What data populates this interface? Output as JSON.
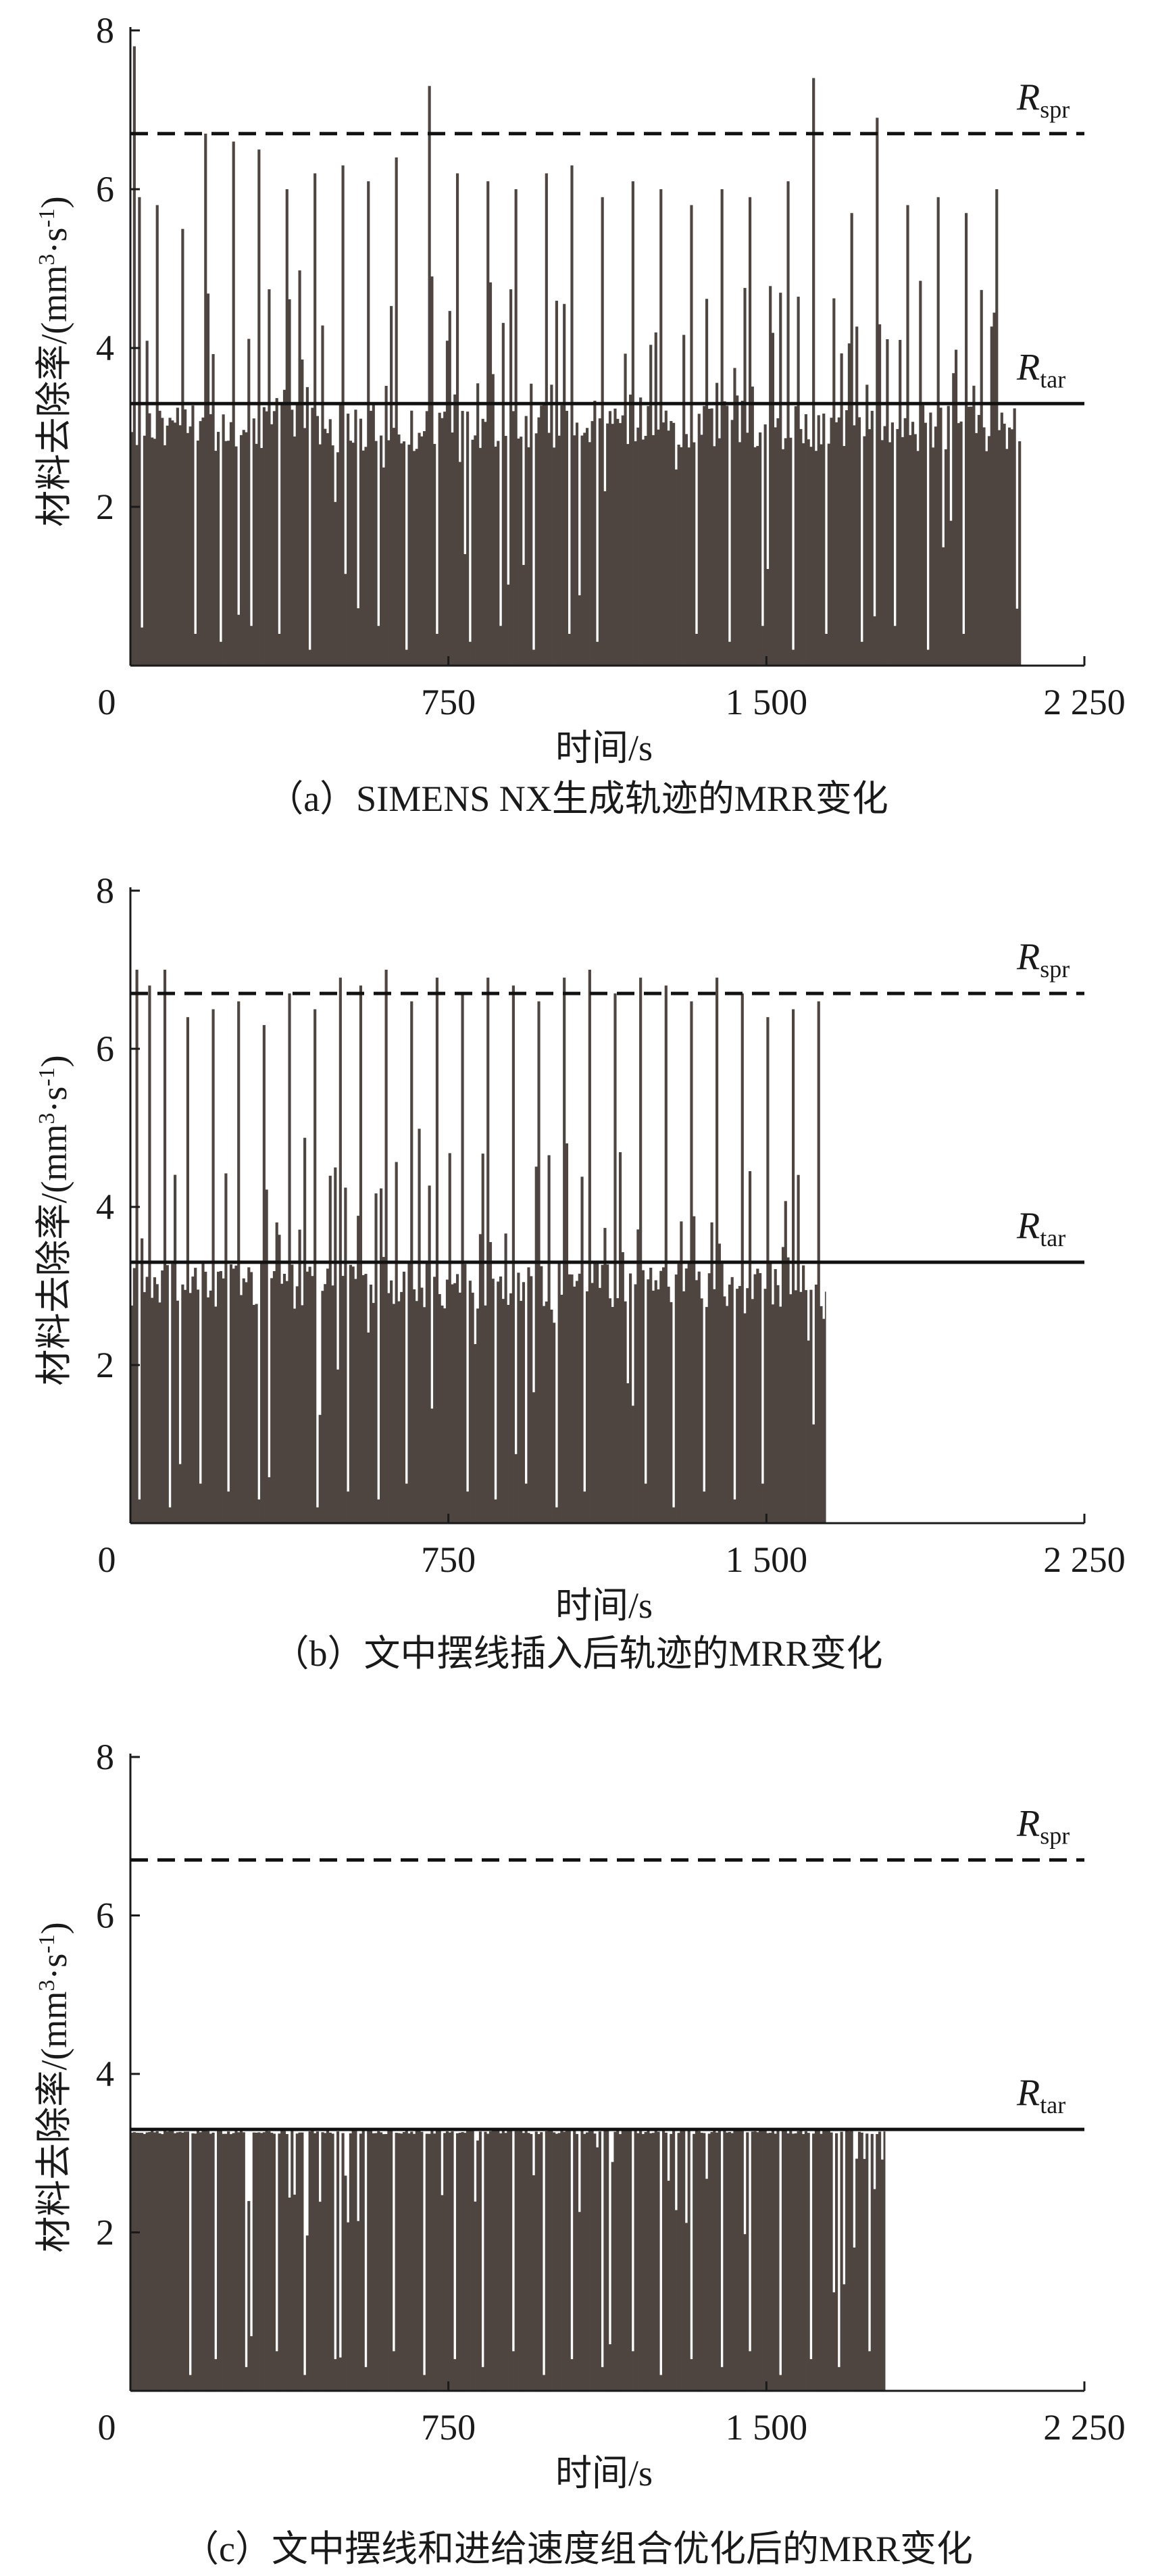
{
  "chart_data": [
    {
      "type": "bar",
      "panel": "a",
      "caption": "（a）SIMENS NX生成轨迹的MRR变化",
      "xlabel": "时间/s",
      "ylabel": "材料去除率/(mm³·s⁻¹)",
      "ylabel_main": "材料去除率/(mm",
      "ylabel_sup1": "3",
      "ylabel_mid": "·s",
      "ylabel_sup2": "-1",
      "ylabel_end": ")",
      "xlim": [
        0,
        2250
      ],
      "ylim": [
        0,
        8
      ],
      "x_ticks": [
        "0",
        "750",
        "1 500",
        "2 250"
      ],
      "x_tick_values": [
        0,
        750,
        1500,
        2250
      ],
      "y_ticks": [
        "2",
        "4",
        "6",
        "8"
      ],
      "y_tick_values": [
        2,
        4,
        6,
        8
      ],
      "reference_lines": [
        {
          "label": "R",
          "sub": "spr",
          "value": 6.7,
          "style": "dashed"
        },
        {
          "label": "R",
          "sub": "tar",
          "value": 3.3,
          "style": "solid"
        }
      ],
      "series": [
        {
          "x_start": 0,
          "x_end": 2100,
          "baseline_typical": 3.3,
          "dips": [
            [
              150,
              0.4
            ],
            [
              210,
              0.3
            ],
            [
              280,
              0.5
            ],
            [
              350,
              0.4
            ],
            [
              420,
              0.2
            ],
            [
              500,
              0.3
            ],
            [
              580,
              0.5
            ],
            [
              650,
              0.2
            ],
            [
              720,
              0.4
            ],
            [
              800,
              0.3
            ],
            [
              870,
              0.5
            ],
            [
              950,
              0.2
            ],
            [
              1030,
              0.4
            ],
            [
              1100,
              0.3
            ],
            [
              1180,
              0.5
            ],
            [
              1250,
              0.2
            ],
            [
              1330,
              0.4
            ],
            [
              1410,
              0.3
            ],
            [
              1490,
              0.5
            ],
            [
              1560,
              0.2
            ],
            [
              1640,
              0.4
            ],
            [
              1720,
              0.3
            ],
            [
              1800,
              0.5
            ],
            [
              1880,
              0.2
            ],
            [
              1960,
              0.4
            ],
            [
              2040,
              0.3
            ]
          ],
          "peaks": [
            [
              5,
              7.8
            ],
            [
              20,
              5.9
            ],
            [
              60,
              5.8
            ],
            [
              120,
              5.5
            ],
            [
              175,
              6.7
            ],
            [
              240,
              6.6
            ],
            [
              300,
              6.5
            ],
            [
              365,
              6.0
            ],
            [
              430,
              6.2
            ],
            [
              495,
              6.3
            ],
            [
              560,
              6.1
            ],
            [
              625,
              6.4
            ],
            [
              700,
              7.3
            ],
            [
              770,
              6.2
            ],
            [
              840,
              6.1
            ],
            [
              905,
              6.0
            ],
            [
              975,
              6.2
            ],
            [
              1040,
              6.3
            ],
            [
              1110,
              5.9
            ],
            [
              1180,
              6.1
            ],
            [
              1250,
              6.0
            ],
            [
              1320,
              5.8
            ],
            [
              1390,
              6.0
            ],
            [
              1460,
              5.9
            ],
            [
              1550,
              6.1
            ],
            [
              1610,
              7.4
            ],
            [
              1700,
              5.7
            ],
            [
              1760,
              6.9
            ],
            [
              1830,
              5.8
            ],
            [
              1900,
              5.9
            ],
            [
              1970,
              5.7
            ],
            [
              2040,
              6.0
            ]
          ],
          "colour": "#4e4541"
        }
      ]
    },
    {
      "type": "bar",
      "panel": "b",
      "caption": "（b）文中摆线插入后轨迹的MRR变化",
      "xlabel": "时间/s",
      "ylabel": "材料去除率/(mm³·s⁻¹)",
      "ylabel_main": "材料去除率/(mm",
      "ylabel_sup1": "3",
      "ylabel_mid": "·s",
      "ylabel_sup2": "-1",
      "ylabel_end": ")",
      "xlim": [
        0,
        2250
      ],
      "ylim": [
        0,
        8
      ],
      "x_ticks": [
        "0",
        "750",
        "1 500",
        "2 250"
      ],
      "x_tick_values": [
        0,
        750,
        1500,
        2250
      ],
      "y_ticks": [
        "2",
        "4",
        "6",
        "8"
      ],
      "y_tick_values": [
        2,
        4,
        6,
        8
      ],
      "reference_lines": [
        {
          "label": "R",
          "sub": "spr",
          "value": 6.7,
          "style": "dashed"
        },
        {
          "label": "R",
          "sub": "tar",
          "value": 3.3,
          "style": "solid"
        }
      ],
      "series": [
        {
          "x_start": 0,
          "x_end": 1640,
          "baseline_typical": 3.3,
          "dips": [
            [
              20,
              0.3
            ],
            [
              90,
              0.2
            ],
            [
              160,
              0.5
            ],
            [
              230,
              0.4
            ],
            [
              300,
              0.3
            ],
            [
              370,
              0.5
            ],
            [
              440,
              0.2
            ],
            [
              510,
              0.4
            ],
            [
              580,
              0.3
            ],
            [
              650,
              0.5
            ],
            [
              720,
              0.2
            ],
            [
              790,
              0.4
            ],
            [
              860,
              0.3
            ],
            [
              930,
              0.5
            ],
            [
              1000,
              0.2
            ],
            [
              1070,
              0.4
            ],
            [
              1140,
              0.3
            ],
            [
              1210,
              0.5
            ],
            [
              1280,
              0.2
            ],
            [
              1350,
              0.4
            ],
            [
              1420,
              0.3
            ],
            [
              1490,
              0.5
            ],
            [
              1560,
              0.2
            ],
            [
              1620,
              0.4
            ]
          ],
          "peaks": [
            [
              10,
              7.0
            ],
            [
              40,
              6.8
            ],
            [
              80,
              7.0
            ],
            [
              130,
              6.4
            ],
            [
              190,
              6.5
            ],
            [
              250,
              6.6
            ],
            [
              310,
              6.3
            ],
            [
              370,
              6.7
            ],
            [
              430,
              6.5
            ],
            [
              490,
              6.9
            ],
            [
              540,
              6.8
            ],
            [
              600,
              7.0
            ],
            [
              660,
              6.6
            ],
            [
              720,
              6.9
            ],
            [
              780,
              6.7
            ],
            [
              840,
              6.9
            ],
            [
              900,
              6.8
            ],
            [
              960,
              6.6
            ],
            [
              1020,
              6.9
            ],
            [
              1080,
              7.0
            ],
            [
              1140,
              6.7
            ],
            [
              1200,
              6.9
            ],
            [
              1260,
              6.8
            ],
            [
              1320,
              6.6
            ],
            [
              1380,
              6.9
            ],
            [
              1440,
              6.7
            ],
            [
              1500,
              6.4
            ],
            [
              1560,
              6.5
            ],
            [
              1620,
              6.6
            ]
          ],
          "colour": "#4e4541"
        }
      ]
    },
    {
      "type": "bar",
      "panel": "c",
      "caption": "（c）文中摆线和进给速度组合优化后的MRR变化",
      "xlabel": "时间/s",
      "ylabel": "材料去除率/(mm³·s⁻¹)",
      "ylabel_main": "材料去除率/(mm",
      "ylabel_sup1": "3",
      "ylabel_mid": "·s",
      "ylabel_sup2": "-1",
      "ylabel_end": ")",
      "xlim": [
        0,
        2250
      ],
      "ylim": [
        0,
        8
      ],
      "x_ticks": [
        "0",
        "750",
        "1 500",
        "2 250"
      ],
      "x_tick_values": [
        0,
        750,
        1500,
        2250
      ],
      "y_ticks": [
        "2",
        "4",
        "6",
        "8"
      ],
      "y_tick_values": [
        2,
        4,
        6,
        8
      ],
      "reference_lines": [
        {
          "label": "R",
          "sub": "spr",
          "value": 6.7,
          "style": "dashed"
        },
        {
          "label": "R",
          "sub": "tar",
          "value": 3.3,
          "style": "solid"
        }
      ],
      "series": [
        {
          "x_start": 0,
          "x_end": 1780,
          "baseline_typical": 3.3,
          "dips": [
            [
              140,
              0.2
            ],
            [
              200,
              0.4
            ],
            [
              270,
              0.3
            ],
            [
              340,
              0.5
            ],
            [
              410,
              0.2
            ],
            [
              480,
              0.4
            ],
            [
              550,
              0.3
            ],
            [
              620,
              0.5
            ],
            [
              690,
              0.2
            ],
            [
              760,
              0.4
            ],
            [
              830,
              0.3
            ],
            [
              900,
              0.5
            ],
            [
              970,
              0.2
            ],
            [
              1040,
              0.4
            ],
            [
              1110,
              0.3
            ],
            [
              1180,
              0.5
            ],
            [
              1250,
              0.2
            ],
            [
              1320,
              0.4
            ],
            [
              1390,
              0.3
            ],
            [
              1460,
              0.5
            ],
            [
              1530,
              0.2
            ],
            [
              1600,
              0.4
            ],
            [
              1670,
              0.3
            ],
            [
              1740,
              0.5
            ]
          ],
          "peaks": [],
          "colour": "#4e4541"
        }
      ]
    }
  ],
  "ref_line_colour": "#111111",
  "axis_colour": "#1a1a1a"
}
